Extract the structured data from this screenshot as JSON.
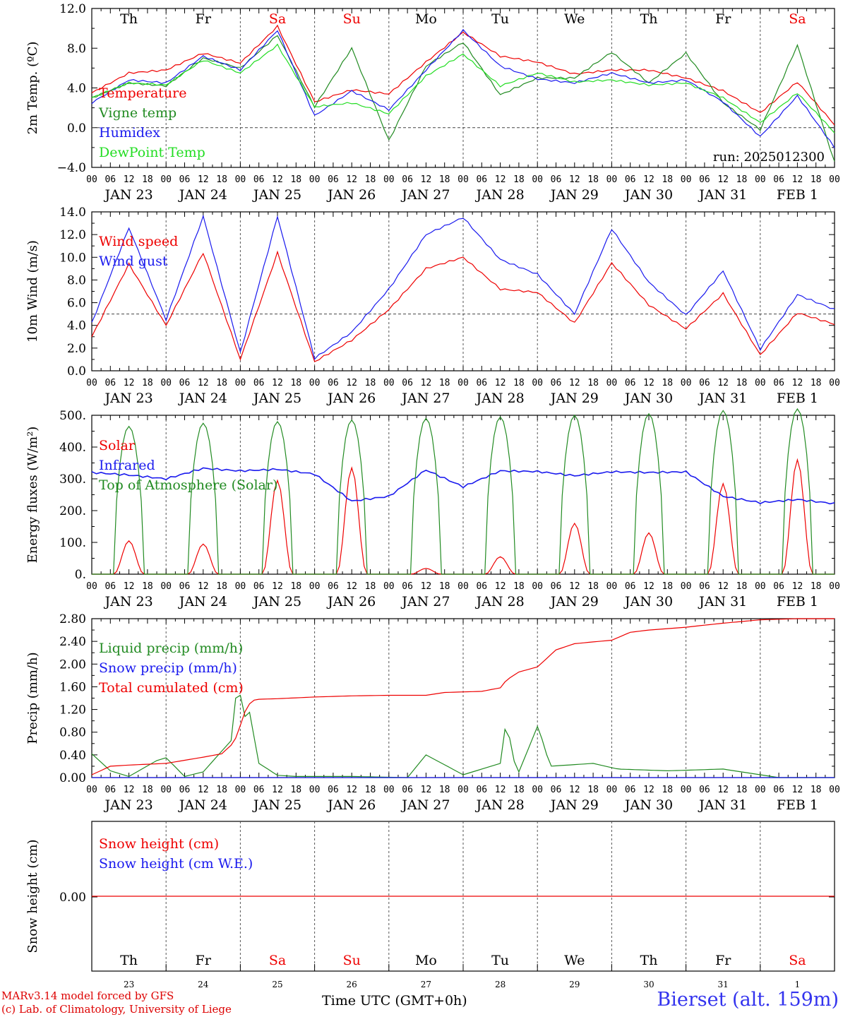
{
  "run_label": "run: 2025012300",
  "station": "Bierset (alt. 159m)",
  "time_axis": "Time UTC (GMT+0h)",
  "credits": [
    "MARv3.14 model forced by GFS",
    "(c) Lab. of Climatology, University of Liege"
  ],
  "days": {
    "weekday": [
      "Th",
      "Fr",
      "Sa",
      "Su",
      "Mo",
      "Tu",
      "We",
      "Th",
      "Fr",
      "Sa"
    ],
    "weekend_flags": [
      false,
      false,
      true,
      true,
      false,
      false,
      false,
      false,
      false,
      true
    ],
    "dates": [
      "JAN 23",
      "JAN 24",
      "JAN 25",
      "JAN 26",
      "JAN 27",
      "JAN 28",
      "JAN 29",
      "JAN 30",
      "JAN 31",
      "FEB  1"
    ],
    "numbers": [
      "23",
      "24",
      "25",
      "26",
      "27",
      "28",
      "29",
      "30",
      "31",
      "1"
    ],
    "hours": [
      "00",
      "06",
      "12",
      "18"
    ],
    "end_hour": "00"
  },
  "colors": {
    "red": "#ee0000",
    "green": "#228b22",
    "blue": "#1a1aee",
    "light_green": "#22dd22"
  },
  "chart_data": [
    {
      "type": "line",
      "ylabel": "2m Temp. (ºC)",
      "ylim": [
        -4,
        12
      ],
      "yticks": [
        "12.0",
        "8.0",
        "4.0",
        "0.0",
        "−4.0"
      ],
      "ytick_values": [
        12,
        8,
        4,
        0,
        -4
      ],
      "reference_line": 0,
      "series": [
        {
          "name": "Temperature",
          "color": "#ee0000",
          "x": [
            0,
            12,
            24,
            36,
            48,
            60,
            72,
            84,
            96,
            108,
            120,
            132,
            144,
            156,
            168,
            180,
            192,
            204,
            216,
            228,
            240
          ],
          "values": [
            3.5,
            5.5,
            5.8,
            7.5,
            6.5,
            10.2,
            2.6,
            3.8,
            3.4,
            6.6,
            9.6,
            7.2,
            6.6,
            5.4,
            5.8,
            5.8,
            5.0,
            3.7,
            1.5,
            4.6,
            0.3
          ]
        },
        {
          "name": "Vigne temp",
          "color": "#228b22",
          "x": [
            0,
            12,
            24,
            36,
            48,
            60,
            72,
            84,
            96,
            108,
            120,
            132,
            144,
            156,
            168,
            180,
            192,
            204,
            216,
            228,
            240
          ],
          "values": [
            3.0,
            4.5,
            4.2,
            7.0,
            6.0,
            9.3,
            2.1,
            8.0,
            -1.3,
            6.2,
            8.6,
            3.3,
            5.0,
            5.0,
            7.6,
            4.5,
            7.5,
            2.5,
            -0.2,
            8.3,
            -3.5
          ]
        },
        {
          "name": "Humidex",
          "color": "#1a1aee",
          "x": [
            0,
            12,
            24,
            36,
            48,
            60,
            72,
            84,
            96,
            108,
            120,
            132,
            144,
            156,
            168,
            180,
            192,
            204,
            216,
            228,
            240
          ],
          "values": [
            2.5,
            4.8,
            4.5,
            7.2,
            5.8,
            9.8,
            1.2,
            3.7,
            1.8,
            5.8,
            9.8,
            6.2,
            4.9,
            4.5,
            5.5,
            4.5,
            4.8,
            2.6,
            -0.9,
            3.2,
            -2.0
          ]
        },
        {
          "name": "DewPoint Temp",
          "color": "#22dd22",
          "x": [
            0,
            12,
            24,
            36,
            48,
            60,
            72,
            84,
            96,
            108,
            120,
            132,
            144,
            156,
            168,
            180,
            192,
            204,
            216,
            228,
            240
          ],
          "values": [
            3.0,
            4.5,
            4.3,
            6.8,
            5.5,
            8.3,
            2.1,
            2.5,
            1.4,
            5.2,
            7.4,
            4.2,
            5.5,
            4.6,
            4.8,
            4.3,
            4.5,
            3.0,
            0.5,
            3.5,
            -0.5
          ]
        }
      ]
    },
    {
      "type": "line",
      "ylabel": "10m Wind (m/s)",
      "ylim": [
        0,
        14
      ],
      "yticks": [
        "14.0",
        "12.0",
        "10.0",
        "8.0",
        "6.0",
        "4.0",
        "2.0",
        "0.0"
      ],
      "ytick_values": [
        14,
        12,
        10,
        8,
        6,
        4,
        2,
        0
      ],
      "reference_line": 5,
      "series": [
        {
          "name": "Wind speed",
          "color": "#ee0000",
          "x": [
            0,
            12,
            24,
            36,
            48,
            60,
            72,
            84,
            96,
            108,
            120,
            132,
            144,
            156,
            168,
            180,
            192,
            204,
            216,
            228,
            240
          ],
          "values": [
            3.0,
            9.4,
            4.0,
            10.4,
            1.0,
            10.4,
            0.8,
            2.7,
            5.4,
            9.0,
            10.0,
            7.2,
            6.9,
            4.2,
            9.5,
            5.8,
            3.7,
            6.8,
            1.4,
            5.1,
            4.1
          ]
        },
        {
          "name": "Wind gust",
          "color": "#1a1aee",
          "x": [
            0,
            12,
            24,
            36,
            48,
            60,
            72,
            84,
            96,
            108,
            120,
            132,
            144,
            156,
            168,
            180,
            192,
            204,
            216,
            228,
            240
          ],
          "values": [
            4.2,
            12.6,
            4.5,
            13.6,
            1.6,
            13.6,
            1.1,
            3.4,
            7.2,
            12.0,
            13.5,
            9.8,
            8.5,
            5.0,
            12.5,
            7.8,
            4.9,
            8.8,
            1.9,
            6.7,
            5.4
          ]
        }
      ]
    },
    {
      "type": "line",
      "ylabel": "Energy fluxes (W/m²)",
      "ylim": [
        0,
        500
      ],
      "yticks": [
        "500.",
        "400.",
        "300.",
        "200.",
        "100.",
        "0."
      ],
      "ytick_values": [
        500,
        400,
        300,
        200,
        100,
        0
      ],
      "series": [
        {
          "name": "Solar",
          "color": "#ee0000",
          "peaks": [
            105,
            95,
            295,
            335,
            18,
            55,
            160,
            130,
            285,
            360
          ]
        },
        {
          "name": "Infrared",
          "color": "#1a1aee",
          "x": [
            0,
            12,
            24,
            36,
            48,
            60,
            72,
            84,
            96,
            108,
            120,
            132,
            144,
            156,
            168,
            180,
            192,
            204,
            216,
            228,
            240
          ],
          "values": [
            320,
            312,
            300,
            333,
            325,
            330,
            315,
            230,
            245,
            328,
            275,
            325,
            323,
            310,
            322,
            320,
            322,
            245,
            225,
            235,
            222
          ]
        },
        {
          "name": "Top of Atmosphere (Solar)",
          "color": "#228b22",
          "peaks": [
            465,
            475,
            480,
            485,
            490,
            495,
            500,
            505,
            515,
            520
          ]
        }
      ]
    },
    {
      "type": "line",
      "ylabel": "Precip (mm/h)",
      "ylim": [
        0,
        2.8
      ],
      "yticks": [
        "2.80",
        "2.40",
        "2.00",
        "1.60",
        "1.20",
        "0.80",
        "0.40",
        "0.00"
      ],
      "ytick_values": [
        2.8,
        2.4,
        2.0,
        1.6,
        1.2,
        0.8,
        0.4,
        0
      ],
      "series": [
        {
          "name": "Liquid precip (mm/h)",
          "color": "#228b22",
          "x": [
            0,
            6,
            12,
            21,
            24,
            30,
            36,
            45,
            47,
            48,
            49,
            51,
            54,
            60,
            66,
            84,
            102,
            108,
            120,
            132,
            134,
            136,
            138,
            144,
            146,
            148,
            162,
            170,
            186,
            204,
            222,
            240
          ],
          "values": [
            0.42,
            0.12,
            0.02,
            0.3,
            0.35,
            0.02,
            0.1,
            0.65,
            1.65,
            1.45,
            1.05,
            1.15,
            0.25,
            0.04,
            0.02,
            0.02,
            0.0,
            0.4,
            0.05,
            0.25,
            1.05,
            0.35,
            0.1,
            0.9,
            0.6,
            0.2,
            0.25,
            0.15,
            0.12,
            0.15,
            0.0,
            0.0
          ]
        },
        {
          "name": "Snow precip (mm/h)",
          "color": "#1a1aee",
          "x": [
            0,
            240
          ],
          "values": [
            0,
            0
          ]
        },
        {
          "name": "Total cumulated (cm)",
          "color": "#ee0000",
          "x": [
            0,
            6,
            12,
            24,
            36,
            42,
            46,
            48,
            50,
            52,
            54,
            60,
            72,
            84,
            96,
            108,
            114,
            120,
            126,
            132,
            134,
            138,
            144,
            150,
            156,
            168,
            174,
            180,
            192,
            204,
            216,
            228,
            240
          ],
          "values": [
            0.05,
            0.2,
            0.22,
            0.25,
            0.36,
            0.42,
            0.62,
            0.92,
            1.24,
            1.36,
            1.38,
            1.39,
            1.42,
            1.44,
            1.45,
            1.45,
            1.5,
            1.51,
            1.52,
            1.58,
            1.72,
            1.86,
            1.95,
            2.25,
            2.36,
            2.42,
            2.56,
            2.6,
            2.65,
            2.72,
            2.78,
            2.8,
            2.8
          ]
        }
      ]
    },
    {
      "type": "line",
      "ylabel": "Snow height (cm)",
      "yticks": [
        "0.00"
      ],
      "ytick_values": [
        0
      ],
      "series": [
        {
          "name": "Snow height (cm)",
          "color": "#ee0000",
          "x": [
            0,
            240
          ],
          "values": [
            0,
            0
          ]
        },
        {
          "name": "Snow height (cm W.E.)",
          "color": "#1a1aee",
          "x": [],
          "values": []
        }
      ]
    }
  ]
}
